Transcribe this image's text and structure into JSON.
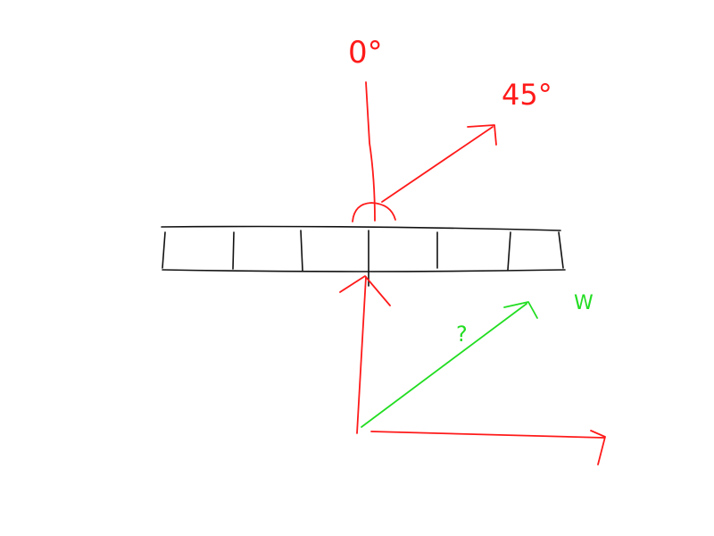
{
  "colors": {
    "background": "#ffffff",
    "ink": "#111111",
    "red": "#ff1a1a",
    "green": "#22dd22"
  },
  "labels": {
    "top_angle": "0°",
    "diagonal_angle": "45°",
    "unknown": "?",
    "wind": "W"
  }
}
